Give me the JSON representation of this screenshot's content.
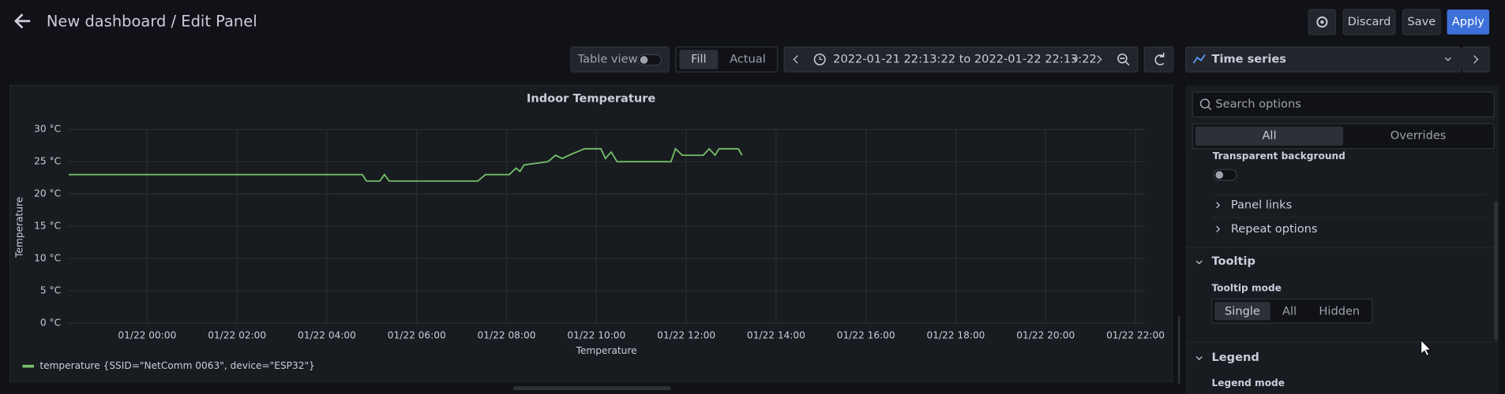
{
  "header": {
    "title": "New dashboard / Edit Panel",
    "buttons": [
      "Discard",
      "Save",
      "Apply"
    ]
  },
  "toolbar": {
    "table_view": "Table view",
    "fill": "Fill",
    "actual": "Actual",
    "time_range": "2022-01-21 22:13:22 to 2022-01-22 22:13:22",
    "visualization": "Time series"
  },
  "options": {
    "search_placeholder": "Search options",
    "tabs": [
      "All",
      "Overrides"
    ],
    "cut_label": "Transparent background",
    "items": [
      "Panel links",
      "Repeat options"
    ],
    "tooltip": {
      "title": "Tooltip",
      "mode_label": "Tooltip mode",
      "modes": [
        "Single",
        "All",
        "Hidden"
      ]
    },
    "legend": {
      "title": "Legend",
      "mode_label": "Legend mode"
    }
  },
  "chart_data": {
    "type": "line",
    "title": "Indoor Temperature",
    "y_label": "Temperature",
    "x_label": "Temperature",
    "x": [
      -1.75,
      4.79,
      4.88,
      5.18,
      5.28,
      5.39,
      7.36,
      7.53,
      8.06,
      8.21,
      8.3,
      8.39,
      8.92,
      9.09,
      9.24,
      9.39,
      9.73,
      10.1,
      10.2,
      10.33,
      10.46,
      11.66,
      11.76,
      11.91,
      12.38,
      12.51,
      12.64,
      12.73,
      13.16,
      13.24
    ],
    "series": [
      {
        "name": "temperature {SSID=\"NetComm 0063\", device=\"ESP32\"}",
        "color": "#73bf69",
        "values": [
          23,
          23,
          22,
          22,
          23,
          22,
          22,
          23,
          23,
          24,
          23.5,
          24.5,
          25,
          26,
          25.5,
          26,
          27,
          27,
          25.5,
          26.5,
          25,
          25,
          27,
          26,
          26,
          27,
          26,
          27,
          27,
          26
        ]
      }
    ],
    "xlim": [
      -1.75,
      22.22
    ],
    "ylim": [
      0,
      30
    ],
    "xticks": [
      {
        "value": 0,
        "label": "01/22 00:00"
      },
      {
        "value": 2,
        "label": "01/22 02:00"
      },
      {
        "value": 4,
        "label": "01/22 04:00"
      },
      {
        "value": 6,
        "label": "01/22 06:00"
      },
      {
        "value": 8,
        "label": "01/22 08:00"
      },
      {
        "value": 10,
        "label": "01/22 10:00"
      },
      {
        "value": 12,
        "label": "01/22 12:00"
      },
      {
        "value": 14,
        "label": "01/22 14:00"
      },
      {
        "value": 16,
        "label": "01/22 16:00"
      },
      {
        "value": 18,
        "label": "01/22 18:00"
      },
      {
        "value": 20,
        "label": "01/22 20:00"
      },
      {
        "value": 22,
        "label": "01/22 22:00"
      }
    ],
    "yticks": [
      {
        "value": 0,
        "label": "0 °C"
      },
      {
        "value": 5,
        "label": "5 °C"
      },
      {
        "value": 10,
        "label": "10 °C"
      },
      {
        "value": 15,
        "label": "15 °C"
      },
      {
        "value": 20,
        "label": "20 °C"
      },
      {
        "value": 25,
        "label": "25 °C"
      },
      {
        "value": 30,
        "label": "30 °C"
      }
    ],
    "grid": true
  }
}
